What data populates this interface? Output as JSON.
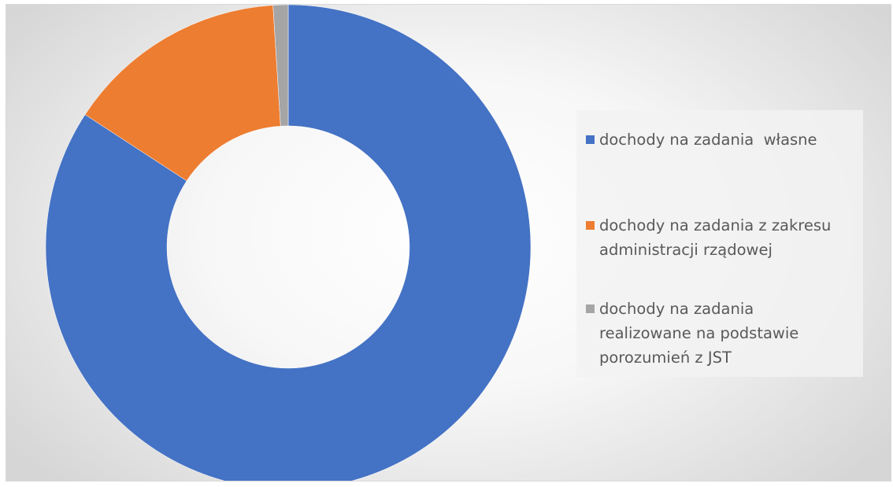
{
  "chart_data": {
    "type": "pie",
    "variant": "doughnut",
    "title": "",
    "categories": [
      "dochody na zadania  własne",
      "dochody na zadania z zakresu administracji rządowej",
      "dochody na zadania realizowane na podstawie porozumień z JST"
    ],
    "values": [
      84.2,
      14.8,
      1.0
    ],
    "colors": [
      "#4472c4",
      "#ed7d31",
      "#a5a5a5"
    ],
    "legend_position": "right"
  },
  "legend": {
    "items": [
      {
        "label": "dochody na zadania  własne",
        "color": "#4472c4"
      },
      {
        "label": "dochody na zadania z zakresu\nadministracji rządowej",
        "color": "#ed7d31"
      },
      {
        "label": "dochody na zadania\nrealizowane na podstawie\nporozumień z JST",
        "color": "#a5a5a5"
      }
    ]
  }
}
